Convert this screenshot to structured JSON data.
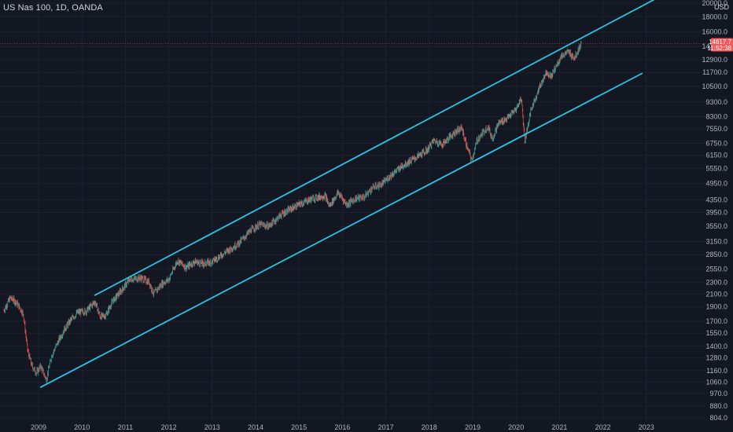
{
  "header": {
    "symbol_line": "US Nas 100, 1D, OANDA",
    "currency": "USD"
  },
  "colors": {
    "background": "#131722",
    "grid": "#1e2230",
    "up": "#26a69a",
    "down": "#ef5350",
    "channel": "#29c4e6",
    "price_tag": "#f05a5a",
    "price_line": "#f05a5a"
  },
  "chart_data": {
    "type": "candlestick",
    "scale": "log",
    "x_axis": {
      "labels": [
        "2009",
        "2010",
        "2011",
        "2012",
        "2013",
        "2014",
        "2015",
        "2016",
        "2017",
        "2018",
        "2019",
        "2020",
        "2021",
        "2022",
        "2023"
      ],
      "range": [
        2008.2,
        2023.8
      ]
    },
    "y_axis": {
      "labels": [
        "20000.0",
        "18000.0",
        "16000.0",
        "14300.0",
        "12900.0",
        "11700.0",
        "10500.0",
        "9300.0",
        "8300.0",
        "7550.0",
        "6750.0",
        "6150.0",
        "5550.0",
        "4950.0",
        "4350.0",
        "3950.0",
        "3550.0",
        "3150.0",
        "2850.0",
        "2550.0",
        "2300.0",
        "2100.0",
        "1900.0",
        "1700.0",
        "1550.0",
        "1400.0",
        "1280.0",
        "1160.0",
        "1060.0",
        "970.0",
        "880.0",
        "804.0"
      ],
      "range": [
        790,
        21000
      ]
    },
    "current_price": {
      "value": 14617.7,
      "label": "14617.7",
      "countdown": "11:52:38"
    },
    "price_path": [
      [
        2008.2,
        1850
      ],
      [
        2008.35,
        2040
      ],
      [
        2008.5,
        1960
      ],
      [
        2008.65,
        1800
      ],
      [
        2008.75,
        1350
      ],
      [
        2008.85,
        1200
      ],
      [
        2008.95,
        1140
      ],
      [
        2009.05,
        1200
      ],
      [
        2009.18,
        1080
      ],
      [
        2009.3,
        1300
      ],
      [
        2009.45,
        1450
      ],
      [
        2009.6,
        1600
      ],
      [
        2009.75,
        1720
      ],
      [
        2009.9,
        1820
      ],
      [
        2010.1,
        1840
      ],
      [
        2010.3,
        1980
      ],
      [
        2010.42,
        1760
      ],
      [
        2010.55,
        1780
      ],
      [
        2010.7,
        1980
      ],
      [
        2010.9,
        2150
      ],
      [
        2011.1,
        2350
      ],
      [
        2011.35,
        2380
      ],
      [
        2011.55,
        2300
      ],
      [
        2011.65,
        2100
      ],
      [
        2011.85,
        2280
      ],
      [
        2012.0,
        2350
      ],
      [
        2012.2,
        2720
      ],
      [
        2012.4,
        2580
      ],
      [
        2012.6,
        2700
      ],
      [
        2012.8,
        2650
      ],
      [
        2013.0,
        2700
      ],
      [
        2013.3,
        2900
      ],
      [
        2013.6,
        3100
      ],
      [
        2013.9,
        3450
      ],
      [
        2014.1,
        3600
      ],
      [
        2014.3,
        3550
      ],
      [
        2014.6,
        3900
      ],
      [
        2014.8,
        4050
      ],
      [
        2015.0,
        4200
      ],
      [
        2015.3,
        4400
      ],
      [
        2015.6,
        4500
      ],
      [
        2015.7,
        4150
      ],
      [
        2015.9,
        4600
      ],
      [
        2016.1,
        4200
      ],
      [
        2016.3,
        4400
      ],
      [
        2016.5,
        4450
      ],
      [
        2016.7,
        4800
      ],
      [
        2016.9,
        4900
      ],
      [
        2017.1,
        5250
      ],
      [
        2017.4,
        5700
      ],
      [
        2017.7,
        6050
      ],
      [
        2017.95,
        6400
      ],
      [
        2018.1,
        6900
      ],
      [
        2018.3,
        6700
      ],
      [
        2018.6,
        7400
      ],
      [
        2018.75,
        7600
      ],
      [
        2018.85,
        6700
      ],
      [
        2018.98,
        5900
      ],
      [
        2019.1,
        6900
      ],
      [
        2019.35,
        7700
      ],
      [
        2019.45,
        7000
      ],
      [
        2019.6,
        7900
      ],
      [
        2019.8,
        8200
      ],
      [
        2020.0,
        8800
      ],
      [
        2020.12,
        9600
      ],
      [
        2020.2,
        6900
      ],
      [
        2020.35,
        8800
      ],
      [
        2020.55,
        10500
      ],
      [
        2020.7,
        11800
      ],
      [
        2020.8,
        11300
      ],
      [
        2020.95,
        12500
      ],
      [
        2021.05,
        13300
      ],
      [
        2021.2,
        13700
      ],
      [
        2021.35,
        13100
      ],
      [
        2021.5,
        14617.7
      ]
    ],
    "annotations": [
      {
        "type": "trendline",
        "name": "upper-channel",
        "points": [
          [
            2010.3,
            2080
          ],
          [
            2023.3,
            21000
          ]
        ]
      },
      {
        "type": "trendline",
        "name": "lower-channel",
        "points": [
          [
            2009.05,
            1020
          ],
          [
            2022.9,
            11600
          ]
        ]
      }
    ],
    "grid": true,
    "legend": "top-left"
  }
}
